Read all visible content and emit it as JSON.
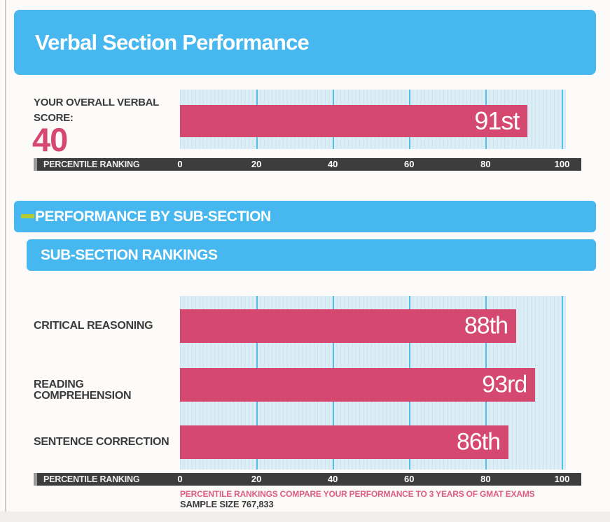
{
  "header": {
    "title": "Verbal Section Performance"
  },
  "overall": {
    "label_line1": "YOUR OVERALL VERBAL",
    "label_line2": "SCORE:",
    "score": "40"
  },
  "sections": {
    "by_subsection_title": "PERFORMANCE BY SUB-SECTION",
    "rankings_title": "SUB-SECTION RANKINGS"
  },
  "axis": {
    "label": "PERCENTILE RANKING",
    "tick_labels": [
      "0",
      "20",
      "40",
      "60",
      "80",
      "100"
    ]
  },
  "footer": {
    "note": "PERCENTILE RANKINGS COMPARE YOUR PERFORMANCE TO 3 YEARS OF GMAT EXAMS",
    "sample_size": "SAMPLE SIZE 767,833"
  },
  "colors": {
    "banner_blue": "#47b7f0",
    "bar_pink": "#d5486f",
    "plot_bg": "#dcedf6",
    "plot_stripe": "#c8e4f2",
    "grid_major": "#55bee8",
    "axis_dark": "#3d3d3d",
    "dash_green": "#b3cc33",
    "footer_pink": "#df5c84"
  },
  "chart_data": [
    {
      "type": "bar",
      "orientation": "horizontal",
      "title": "Your Overall Verbal Score percentile",
      "categories": [
        "Overall Verbal Score (40)"
      ],
      "values": [
        91
      ],
      "value_labels": [
        "91st"
      ],
      "xlabel": "PERCENTILE RANKING",
      "xlim": [
        0,
        100
      ],
      "ticks": [
        0,
        20,
        40,
        60,
        80,
        100
      ],
      "grid": true,
      "legend": false,
      "plot_max": 101
    },
    {
      "type": "bar",
      "orientation": "horizontal",
      "title": "SUB-SECTION RANKINGS",
      "categories": [
        "CRITICAL REASONING",
        "READING COMPREHENSION",
        "SENTENCE CORRECTION"
      ],
      "values": [
        88,
        93,
        86
      ],
      "value_labels": [
        "88th",
        "93rd",
        "86th"
      ],
      "xlabel": "PERCENTILE RANKING",
      "xlim": [
        0,
        100
      ],
      "ticks": [
        0,
        20,
        40,
        60,
        80,
        100
      ],
      "grid": true,
      "legend": false,
      "plot_max": 101
    }
  ]
}
